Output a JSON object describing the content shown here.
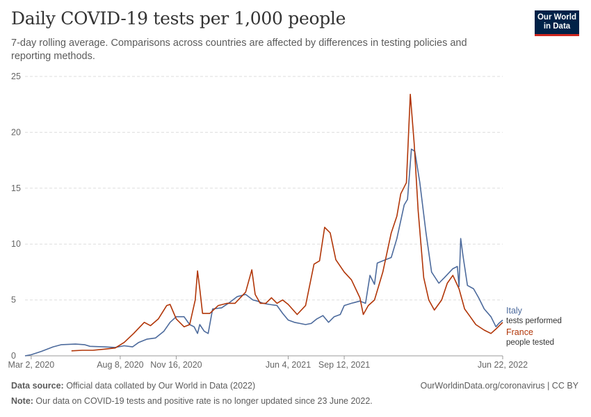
{
  "header": {
    "title": "Daily COVID-19 tests per 1,000 people",
    "subtitle": "7-day rolling average. Comparisons across countries are affected by differences in testing policies and reporting methods.",
    "logo_line1": "Our World",
    "logo_line2": "in Data"
  },
  "footer": {
    "source_label": "Data source:",
    "source_text": " Official data collated by Our World in Data (2022)",
    "note_label": "Note:",
    "note_text": " Our data on COVID-19 tests and positive rate is no longer updated since 23 June 2022.",
    "credit": "OurWorldinData.org/coronavirus | CC BY"
  },
  "colors": {
    "italy": "#4c6a9c",
    "france": "#b13507",
    "grid": "#dddddd"
  },
  "chart_data": {
    "type": "line",
    "ylim": [
      0,
      25
    ],
    "yticks": [
      0,
      5,
      10,
      15,
      20,
      25
    ],
    "xlim": [
      "2020-02-20",
      "2022-06-22"
    ],
    "xticks": [
      "Mar 2, 2020",
      "Aug 8, 2020",
      "Nov 16, 2020",
      "Jun 4, 2021",
      "Sep 12, 2021",
      "Jun 22, 2022"
    ],
    "xtick_dates": [
      "2020-03-02",
      "2020-08-08",
      "2020-11-16",
      "2021-06-04",
      "2021-09-12",
      "2022-06-22"
    ],
    "series": [
      {
        "name": "Italy",
        "sublabel": "tests performed",
        "color": "#4c6a9c",
        "points": [
          [
            "2020-02-20",
            0.0
          ],
          [
            "2020-03-02",
            0.1
          ],
          [
            "2020-03-20",
            0.4
          ],
          [
            "2020-04-10",
            0.8
          ],
          [
            "2020-04-25",
            1.0
          ],
          [
            "2020-05-20",
            1.05
          ],
          [
            "2020-06-05",
            1.0
          ],
          [
            "2020-06-15",
            0.85
          ],
          [
            "2020-07-10",
            0.8
          ],
          [
            "2020-07-30",
            0.75
          ],
          [
            "2020-08-15",
            0.9
          ],
          [
            "2020-08-30",
            0.8
          ],
          [
            "2020-09-10",
            1.2
          ],
          [
            "2020-09-25",
            1.5
          ],
          [
            "2020-10-10",
            1.6
          ],
          [
            "2020-10-25",
            2.2
          ],
          [
            "2020-11-05",
            3.0
          ],
          [
            "2020-11-16",
            3.5
          ],
          [
            "2020-11-30",
            3.5
          ],
          [
            "2020-12-10",
            2.8
          ],
          [
            "2020-12-18",
            2.6
          ],
          [
            "2020-12-24",
            2.0
          ],
          [
            "2020-12-28",
            2.8
          ],
          [
            "2021-01-05",
            2.2
          ],
          [
            "2021-01-12",
            2.0
          ],
          [
            "2021-01-20",
            4.2
          ],
          [
            "2021-02-05",
            4.3
          ],
          [
            "2021-02-20",
            4.8
          ],
          [
            "2021-03-05",
            5.3
          ],
          [
            "2021-03-20",
            5.5
          ],
          [
            "2021-04-02",
            5.0
          ],
          [
            "2021-04-10",
            4.9
          ],
          [
            "2021-04-20",
            4.7
          ],
          [
            "2021-05-01",
            4.6
          ],
          [
            "2021-05-15",
            4.5
          ],
          [
            "2021-05-25",
            3.8
          ],
          [
            "2021-06-04",
            3.2
          ],
          [
            "2021-06-15",
            3.0
          ],
          [
            "2021-06-25",
            2.9
          ],
          [
            "2021-07-05",
            2.8
          ],
          [
            "2021-07-15",
            2.9
          ],
          [
            "2021-07-25",
            3.3
          ],
          [
            "2021-08-05",
            3.6
          ],
          [
            "2021-08-15",
            3.0
          ],
          [
            "2021-08-25",
            3.5
          ],
          [
            "2021-09-05",
            3.7
          ],
          [
            "2021-09-12",
            4.5
          ],
          [
            "2021-09-25",
            4.7
          ],
          [
            "2021-10-10",
            4.9
          ],
          [
            "2021-10-20",
            4.7
          ],
          [
            "2021-10-28",
            7.2
          ],
          [
            "2021-11-05",
            6.4
          ],
          [
            "2021-11-10",
            8.3
          ],
          [
            "2021-11-20",
            8.5
          ],
          [
            "2021-12-05",
            8.8
          ],
          [
            "2021-12-15",
            10.5
          ],
          [
            "2021-12-28",
            13.5
          ],
          [
            "2022-01-03",
            14.0
          ],
          [
            "2022-01-10",
            18.5
          ],
          [
            "2022-01-16",
            18.3
          ],
          [
            "2022-01-25",
            15.5
          ],
          [
            "2022-02-05",
            11.0
          ],
          [
            "2022-02-15",
            7.5
          ],
          [
            "2022-02-28",
            6.5
          ],
          [
            "2022-03-10",
            7.0
          ],
          [
            "2022-03-25",
            7.8
          ],
          [
            "2022-04-02",
            8.0
          ],
          [
            "2022-04-05",
            6.2
          ],
          [
            "2022-04-08",
            10.5
          ],
          [
            "2022-04-12",
            9.0
          ],
          [
            "2022-04-20",
            6.3
          ],
          [
            "2022-05-01",
            6.0
          ],
          [
            "2022-05-10",
            5.2
          ],
          [
            "2022-05-20",
            4.2
          ],
          [
            "2022-06-01",
            3.5
          ],
          [
            "2022-06-10",
            2.6
          ],
          [
            "2022-06-15",
            2.9
          ],
          [
            "2022-06-22",
            3.2
          ]
        ]
      },
      {
        "name": "France",
        "sublabel": "people tested",
        "color": "#b13507",
        "points": [
          [
            "2020-05-13",
            0.45
          ],
          [
            "2020-06-01",
            0.5
          ],
          [
            "2020-06-20",
            0.5
          ],
          [
            "2020-07-10",
            0.6
          ],
          [
            "2020-07-30",
            0.7
          ],
          [
            "2020-08-15",
            1.2
          ],
          [
            "2020-09-01",
            2.0
          ],
          [
            "2020-09-20",
            3.0
          ],
          [
            "2020-10-01",
            2.7
          ],
          [
            "2020-10-15",
            3.3
          ],
          [
            "2020-10-30",
            4.5
          ],
          [
            "2020-11-05",
            4.6
          ],
          [
            "2020-11-16",
            3.3
          ],
          [
            "2020-11-30",
            2.6
          ],
          [
            "2020-12-10",
            2.8
          ],
          [
            "2020-12-20",
            5.0
          ],
          [
            "2020-12-24",
            7.6
          ],
          [
            "2020-12-28",
            6.0
          ],
          [
            "2021-01-02",
            3.8
          ],
          [
            "2021-01-15",
            3.8
          ],
          [
            "2021-01-30",
            4.5
          ],
          [
            "2021-02-15",
            4.7
          ],
          [
            "2021-03-01",
            4.7
          ],
          [
            "2021-03-20",
            5.7
          ],
          [
            "2021-03-31",
            7.7
          ],
          [
            "2021-04-06",
            5.5
          ],
          [
            "2021-04-15",
            4.7
          ],
          [
            "2021-04-25",
            4.7
          ],
          [
            "2021-05-05",
            5.2
          ],
          [
            "2021-05-15",
            4.7
          ],
          [
            "2021-05-25",
            5.0
          ],
          [
            "2021-06-04",
            4.6
          ],
          [
            "2021-06-20",
            3.7
          ],
          [
            "2021-07-05",
            4.5
          ],
          [
            "2021-07-20",
            8.2
          ],
          [
            "2021-07-30",
            8.5
          ],
          [
            "2021-08-08",
            11.5
          ],
          [
            "2021-08-18",
            11.0
          ],
          [
            "2021-08-28",
            8.6
          ],
          [
            "2021-09-12",
            7.5
          ],
          [
            "2021-09-25",
            6.8
          ],
          [
            "2021-10-10",
            5.2
          ],
          [
            "2021-10-16",
            3.7
          ],
          [
            "2021-10-25",
            4.5
          ],
          [
            "2021-11-05",
            5.0
          ],
          [
            "2021-11-20",
            7.5
          ],
          [
            "2021-12-05",
            11.0
          ],
          [
            "2021-12-15",
            12.5
          ],
          [
            "2021-12-22",
            14.5
          ],
          [
            "2022-01-01",
            15.5
          ],
          [
            "2022-01-08",
            23.4
          ],
          [
            "2022-01-15",
            19.0
          ],
          [
            "2022-01-22",
            13.0
          ],
          [
            "2022-02-01",
            7.0
          ],
          [
            "2022-02-10",
            5.0
          ],
          [
            "2022-02-20",
            4.1
          ],
          [
            "2022-03-05",
            5.0
          ],
          [
            "2022-03-15",
            6.5
          ],
          [
            "2022-03-25",
            7.2
          ],
          [
            "2022-04-05",
            6.0
          ],
          [
            "2022-04-15",
            4.2
          ],
          [
            "2022-04-25",
            3.5
          ],
          [
            "2022-05-05",
            2.8
          ],
          [
            "2022-05-20",
            2.3
          ],
          [
            "2022-06-01",
            2.0
          ],
          [
            "2022-06-10",
            2.4
          ],
          [
            "2022-06-22",
            3.0
          ]
        ]
      }
    ]
  }
}
